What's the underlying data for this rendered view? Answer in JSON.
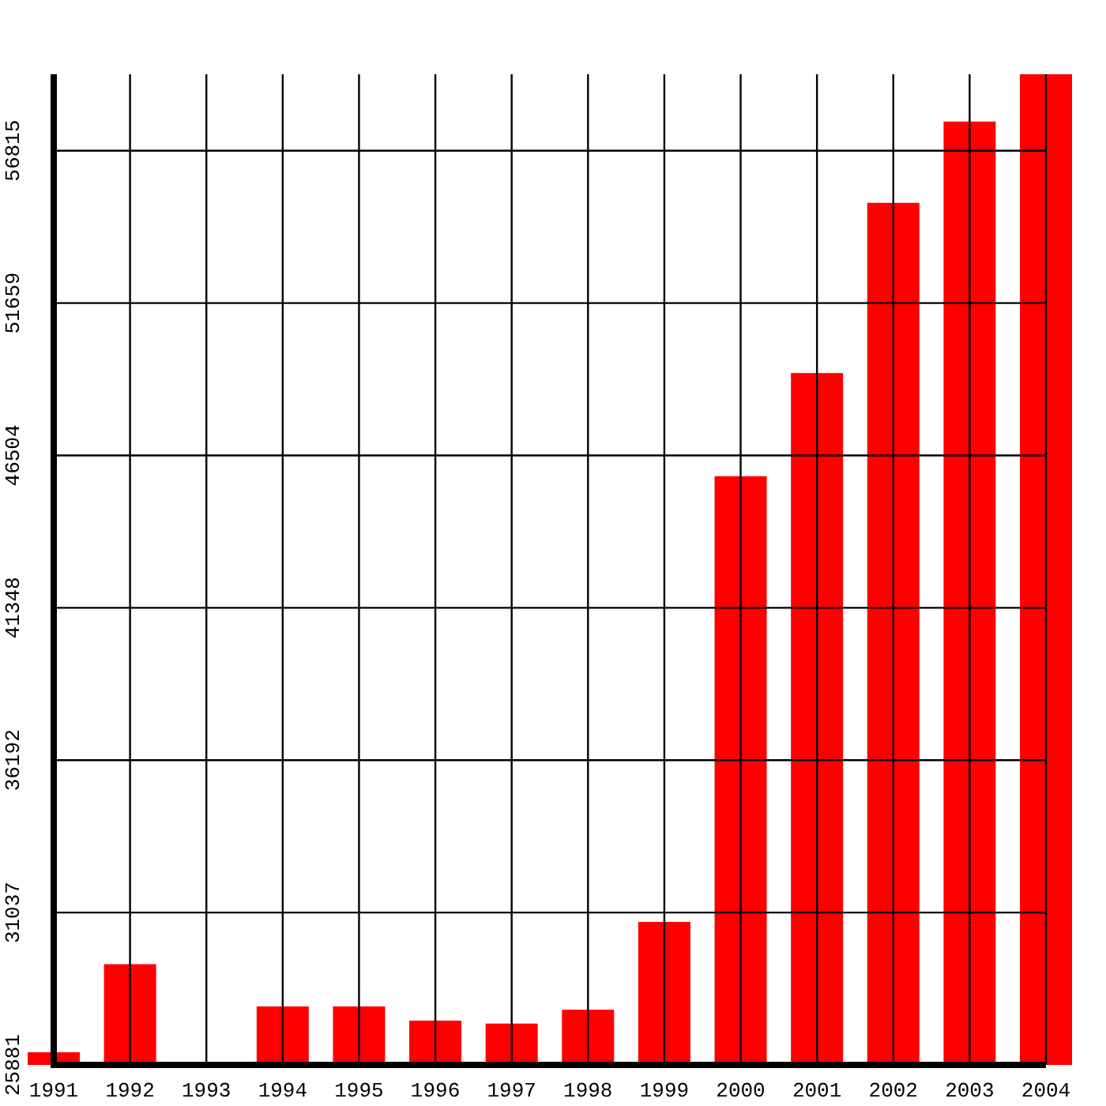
{
  "chart_data": {
    "type": "bar",
    "categories": [
      "1991",
      "1992",
      "1993",
      "1994",
      "1995",
      "1996",
      "1997",
      "1998",
      "1999",
      "2000",
      "2001",
      "2002",
      "2003",
      "2004"
    ],
    "values": [
      26310,
      29290,
      null,
      27860,
      27860,
      27380,
      27280,
      27750,
      30720,
      45800,
      49290,
      55050,
      57800,
      59400
    ],
    "color": "#ff0000",
    "ylim": [
      25881,
      59400
    ],
    "yticks": [
      25881,
      31037,
      36192,
      41348,
      46504,
      51659,
      56815
    ],
    "grid": true
  }
}
